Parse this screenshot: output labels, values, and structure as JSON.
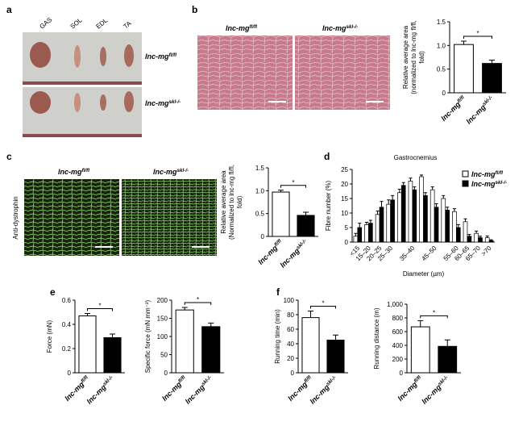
{
  "figure": {
    "panels": [
      "a",
      "b",
      "c",
      "d",
      "e",
      "f"
    ],
    "a_muscles": [
      "GAS",
      "SOL",
      "EDL",
      "TA"
    ],
    "a_genotypes": [
      "lnc-mg fl/fl",
      "lnc-mg skl-/-"
    ],
    "b_images": [
      "lnc-mg fl/fl",
      "lnc-mg skl-/-"
    ],
    "c_images": [
      "lnc-mg fl/fl",
      "lnc-mg skl-/-"
    ],
    "c_stain": "Anti-dystrophin"
  },
  "chart_data": [
    {
      "type": "bar",
      "ylabel": [
        "Relative average area",
        "(normalized to lnc-mg fl/fl,",
        "fold)"
      ],
      "categories": [
        "lnc-mg fl/fl",
        "lnc-mg skl-/-"
      ],
      "values": [
        1.02,
        0.62
      ],
      "errors": [
        0.07,
        0.07
      ],
      "colors": [
        "#ffffff",
        "#000000"
      ],
      "ylim": [
        0,
        1.5
      ],
      "yticks": [
        0,
        0.5,
        {
          "value": 1,
          "label": "1.0"
        },
        1.5
      ],
      "annotation": "*"
    },
    {
      "type": "bar",
      "ylabel": [
        "Relative average area",
        "(Normalized to lnc-mg fl/fl,",
        "fold)"
      ],
      "categories": [
        "lnc-mg fl/fl",
        "lnc-mg skl-/-"
      ],
      "values": [
        0.97,
        0.46
      ],
      "errors": [
        0.04,
        0.07
      ],
      "colors": [
        "#ffffff",
        "#000000"
      ],
      "ylim": [
        0,
        1.5
      ],
      "yticks": [
        0,
        0.5,
        {
          "value": 1,
          "label": "1.0"
        },
        1.5
      ],
      "annotation": "*"
    },
    {
      "type": "grouped_bar",
      "title": "Gastrocnemius",
      "xlabel": "Diameter (µm)",
      "ylabel": [
        "Fibre number (%)"
      ],
      "categories": [
        "<15",
        "15–20",
        "20–25",
        "25–30",
        null,
        "35–40",
        null,
        "45–50",
        null,
        "55–60",
        "60–65",
        "65–70",
        ">70"
      ],
      "series": [
        {
          "name": "lnc-mg fl/fl",
          "color": "#ffffff",
          "values": [
            2,
            6,
            9.5,
            13,
            17,
            21,
            22.5,
            18,
            15,
            10.5,
            7,
            3,
            1.5
          ],
          "errors": [
            1,
            0.8,
            1.2,
            1.5,
            1.2,
            1,
            0.6,
            1,
            1,
            1,
            1,
            0.8,
            0.6
          ]
        },
        {
          "name": "lnc-mg skl-/-",
          "color": "#000000",
          "values": [
            5,
            6.5,
            12,
            14.5,
            19.5,
            18,
            16,
            12,
            11,
            5,
            2,
            1.5,
            0.5
          ],
          "errors": [
            1.5,
            1,
            2,
            1.5,
            1,
            1,
            1,
            1.2,
            1,
            1,
            0.6,
            0.5,
            0.3
          ]
        }
      ],
      "ylim": [
        0,
        25
      ],
      "yticks": [
        0,
        5,
        10,
        15,
        20,
        25
      ],
      "legend": "top-right"
    },
    {
      "type": "bar",
      "ylabel": [
        "Force (mN)"
      ],
      "categories": [
        "lnc-mg fl/fl",
        "lnc-mg skl-/-"
      ],
      "values": [
        0.47,
        0.29
      ],
      "errors": [
        0.02,
        0.03
      ],
      "colors": [
        "#ffffff",
        "#000000"
      ],
      "ylim": [
        0,
        0.6
      ],
      "yticks": [
        0,
        0.2,
        0.4,
        0.6
      ],
      "annotation": "*"
    },
    {
      "type": "bar",
      "ylabel": [
        "Specific force (mN mm⁻²)"
      ],
      "categories": [
        "lnc-mg fl/fl",
        "lnc-mg skl-/-"
      ],
      "values": [
        173,
        127
      ],
      "errors": [
        7,
        10
      ],
      "colors": [
        "#ffffff",
        "#000000"
      ],
      "ylim": [
        0,
        200
      ],
      "yticks": [
        0,
        50,
        100,
        150,
        200
      ],
      "annotation": "*"
    },
    {
      "type": "bar",
      "ylabel": [
        "Running time (min)"
      ],
      "categories": [
        "lnc-mg fl/fl",
        "lnc-mg skl-/-"
      ],
      "values": [
        76,
        45
      ],
      "errors": [
        9,
        7
      ],
      "colors": [
        "#ffffff",
        "#000000"
      ],
      "ylim": [
        0,
        100
      ],
      "yticks": [
        0,
        20,
        40,
        60,
        80,
        100
      ],
      "annotation": "*"
    },
    {
      "type": "bar",
      "ylabel": [
        "Running distance (m)"
      ],
      "categories": [
        "lnc-mg fl/fl",
        "lnc-mg skl-/-"
      ],
      "values": [
        670,
        385
      ],
      "errors": [
        90,
        95
      ],
      "colors": [
        "#ffffff",
        "#000000"
      ],
      "ylim": [
        0,
        1000
      ],
      "yticks": [
        0,
        200,
        400,
        600,
        800,
        {
          "value": 1000,
          "label": "1,000"
        }
      ],
      "annotation": "*"
    }
  ]
}
